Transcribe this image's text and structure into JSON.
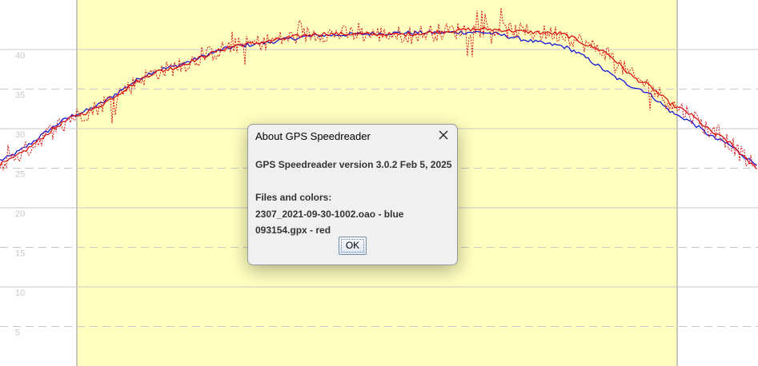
{
  "chart_data": {
    "type": "line",
    "y_ticks": [
      5,
      10,
      15,
      20,
      25,
      30,
      35,
      40
    ],
    "ylim": [
      0,
      46
    ],
    "grid": "solid at multiples of 10, dashed at odd multiples of 5",
    "highlight_region": "yellow band between two vertical lines",
    "series": [
      {
        "color": "#1515d8",
        "style": "solid",
        "x": [
          0,
          100,
          200,
          300,
          400,
          500,
          600,
          700,
          800,
          850,
          900,
          947
        ],
        "values": [
          26,
          32,
          37.5,
          40.5,
          41.8,
          42.1,
          42.2,
          40.5,
          35,
          31.5,
          28.5,
          25.5
        ]
      },
      {
        "color": "#d81515",
        "style": "solid",
        "x": [
          0,
          100,
          200,
          300,
          400,
          500,
          600,
          700,
          750,
          800,
          850,
          900,
          947
        ],
        "values": [
          25.5,
          31.8,
          37.3,
          40.6,
          42,
          41.9,
          42.6,
          42,
          40,
          36,
          32.5,
          29,
          25
        ]
      },
      {
        "color": "#d81515",
        "style": "dotted-noisy",
        "x": [
          0,
          100,
          200,
          300,
          400,
          500,
          600,
          700,
          750,
          800,
          850,
          900,
          947
        ],
        "values": [
          25.5,
          31.8,
          37.3,
          40.6,
          42,
          41.9,
          42.6,
          42,
          40,
          36,
          32.5,
          29,
          25
        ]
      }
    ]
  },
  "dialog": {
    "title": "About GPS Speedreader",
    "close_icon": "close-icon",
    "lines": [
      "GPS Speedreader version 3.0.2 Feb 5, 2025",
      "",
      "Files and colors:",
      "2307_2021-09-30-1002.oao - blue",
      "093154.gpx - red"
    ],
    "ok_label": "OK"
  },
  "colors": {
    "plot_band": "#ffffc0",
    "grid": "#c8c8c8",
    "blue_series": "#1515d8",
    "red_series": "#d81515"
  }
}
